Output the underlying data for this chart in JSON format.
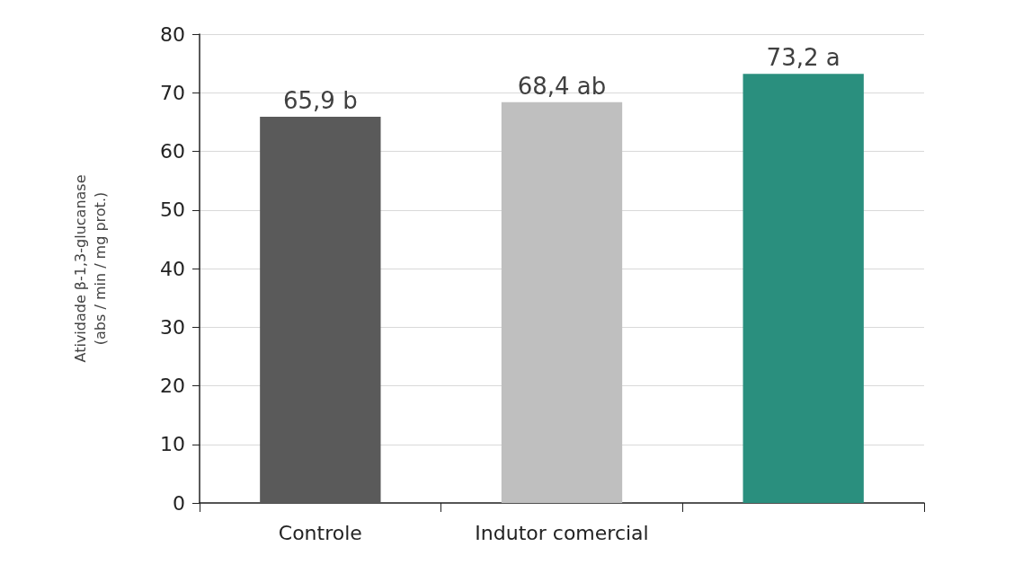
{
  "chart_data": {
    "type": "bar",
    "ylabel": "Atividade β-1,3-glucanase\n(abs / min / mg prot.)",
    "categories": [
      "Controle",
      "Indutor comercial",
      null
    ],
    "values": [
      65.9,
      68.4,
      73.2
    ],
    "colors": [
      "#5a5a5a",
      "#bfbfbf",
      "#2a8f7e"
    ],
    "value_labels": [
      "65,9 b",
      "68,4 ab",
      "73,2 a"
    ],
    "ylim": [
      0,
      80
    ],
    "yticks": [
      0,
      10,
      20,
      30,
      40,
      50,
      60,
      70,
      80
    ],
    "grid": "y"
  }
}
